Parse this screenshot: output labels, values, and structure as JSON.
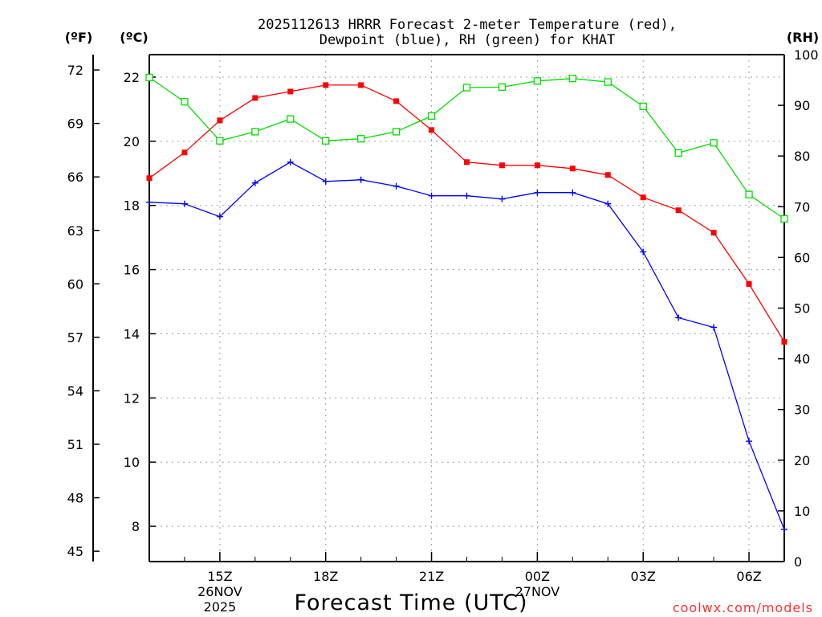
{
  "chart_data": {
    "type": "line",
    "title": "2025112613 HRRR Forecast 2-meter Temperature (red),",
    "title_line2": "Dewpoint (blue), RH (green) for KHAT",
    "xlabel": "Forecast Time (UTC)",
    "credit": "coolwx.com/models",
    "units": {
      "fahrenheit": "(ºF)",
      "celsius": "(ºC)",
      "rh": "(RH)"
    },
    "x_hours": [
      13,
      14,
      15,
      16,
      17,
      18,
      19,
      20,
      21,
      22,
      23,
      24,
      25,
      26,
      27,
      28,
      29,
      30,
      31
    ],
    "xlim": [
      13,
      31
    ],
    "x_ticks": [
      {
        "hour": 15,
        "label": "15Z",
        "date": "26NOV",
        "year": "2025"
      },
      {
        "hour": 18,
        "label": "18Z"
      },
      {
        "hour": 21,
        "label": "21Z"
      },
      {
        "hour": 24,
        "label": "00Z",
        "date": "27NOV"
      },
      {
        "hour": 27,
        "label": "03Z"
      },
      {
        "hour": 30,
        "label": "06Z"
      }
    ],
    "celsius_axis": {
      "min": 6.9,
      "max": 22.7,
      "ticks": [
        8,
        10,
        12,
        14,
        16,
        18,
        20,
        22
      ],
      "tick_labels": [
        "8",
        "10",
        "12",
        "14",
        "16",
        "18",
        "20",
        "22"
      ]
    },
    "fahrenheit_ticks": [
      45,
      48,
      51,
      54,
      57,
      60,
      63,
      66,
      69,
      72
    ],
    "fahrenheit_labels": [
      "45",
      "48",
      "51",
      "54",
      "57",
      "60",
      "63",
      "66",
      "69",
      "72"
    ],
    "rh_axis": {
      "min": 0,
      "max": 100,
      "ticks": [
        0,
        10,
        20,
        30,
        40,
        50,
        60,
        70,
        80,
        90,
        100
      ],
      "tick_labels": [
        "0",
        "10",
        "20",
        "30",
        "40",
        "50",
        "60",
        "70",
        "80",
        "90",
        "100"
      ]
    },
    "grid": true,
    "series": [
      {
        "name": "Temperature",
        "color": "#ff0000",
        "axis": "celsius",
        "marker": "filled-square",
        "values": [
          18.85,
          19.65,
          20.65,
          21.35,
          21.55,
          21.75,
          21.75,
          21.25,
          20.35,
          19.35,
          19.25,
          19.25,
          19.15,
          18.95,
          18.25,
          17.85,
          17.15,
          15.55,
          13.75
        ]
      },
      {
        "name": "Dewpoint",
        "color": "#0000ff",
        "axis": "celsius",
        "marker": "plus",
        "values": [
          18.1,
          18.05,
          17.65,
          18.7,
          19.35,
          18.75,
          18.8,
          18.6,
          18.3,
          18.3,
          18.2,
          18.4,
          18.4,
          18.05,
          16.55,
          14.5,
          14.2,
          10.65,
          7.9
        ]
      },
      {
        "name": "RH",
        "color": "#00dd00",
        "axis": "rh",
        "marker": "open-square",
        "values": [
          95.5,
          90.7,
          83.0,
          84.8,
          87.3,
          83.0,
          83.4,
          84.8,
          87.9,
          93.5,
          93.6,
          94.8,
          95.3,
          94.6,
          89.8,
          80.6,
          82.6,
          72.4,
          67.6
        ]
      }
    ]
  }
}
